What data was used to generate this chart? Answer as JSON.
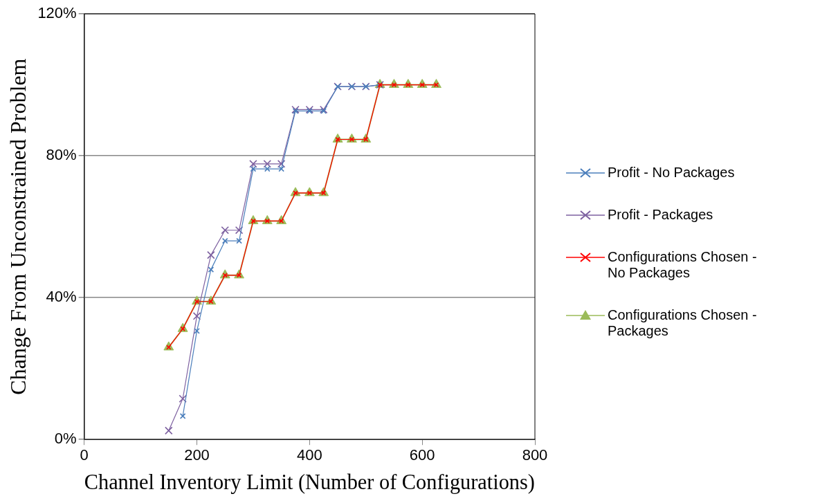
{
  "chart_data": {
    "type": "line",
    "xlabel": "Channel Inventory Limit (Number of Configurations)",
    "ylabel": "Change From Unconstrained Problem",
    "x": [
      150,
      175,
      200,
      225,
      250,
      275,
      300,
      325,
      350,
      375,
      400,
      425,
      450,
      475,
      500,
      525,
      550,
      575,
      600,
      625
    ],
    "xlim": [
      0,
      800
    ],
    "xticks": [
      0,
      200,
      400,
      600,
      800
    ],
    "ylim": [
      0,
      120
    ],
    "yticks": [
      {
        "value": 0,
        "label": "0%"
      },
      {
        "value": 40,
        "label": "40%"
      },
      {
        "value": 80,
        "label": "80%"
      },
      {
        "value": 120,
        "label": "120%"
      }
    ],
    "grid": "y",
    "legend": "right",
    "series": [
      {
        "name": "Profit - No Packages",
        "color": "#4a7ebb",
        "marker": "cross",
        "values": [
          null,
          6.6,
          30.6,
          47.9,
          56,
          56,
          76.3,
          76.3,
          76.3,
          92.6,
          92.6,
          92.6,
          99.5,
          99.5,
          99.5,
          100,
          null,
          null,
          null,
          null
        ]
      },
      {
        "name": "Profit - Packages",
        "color": "#7d60a0",
        "marker": "cross",
        "values": [
          2.5,
          11.5,
          34.8,
          52,
          59,
          59,
          77.7,
          77.7,
          77.7,
          93,
          93,
          93,
          99.5,
          99.5,
          99.5,
          100,
          null,
          null,
          null,
          null
        ]
      },
      {
        "name": "Configurations Chosen - No Packages",
        "color": "#ff0000",
        "marker": "cross",
        "values": [
          26,
          31.2,
          38.9,
          38.9,
          46.3,
          46.3,
          61.6,
          61.6,
          61.6,
          69.5,
          69.5,
          69.5,
          84.6,
          84.6,
          84.6,
          100,
          100,
          100,
          100,
          100
        ]
      },
      {
        "name": "Configurations Chosen - Packages",
        "color": "#9bbb59",
        "marker": "triangle",
        "values": [
          26,
          31.2,
          38.9,
          38.9,
          46.3,
          46.3,
          61.6,
          61.6,
          61.6,
          69.5,
          69.5,
          69.5,
          84.6,
          84.6,
          84.6,
          100,
          100,
          100,
          100,
          100
        ]
      }
    ]
  }
}
